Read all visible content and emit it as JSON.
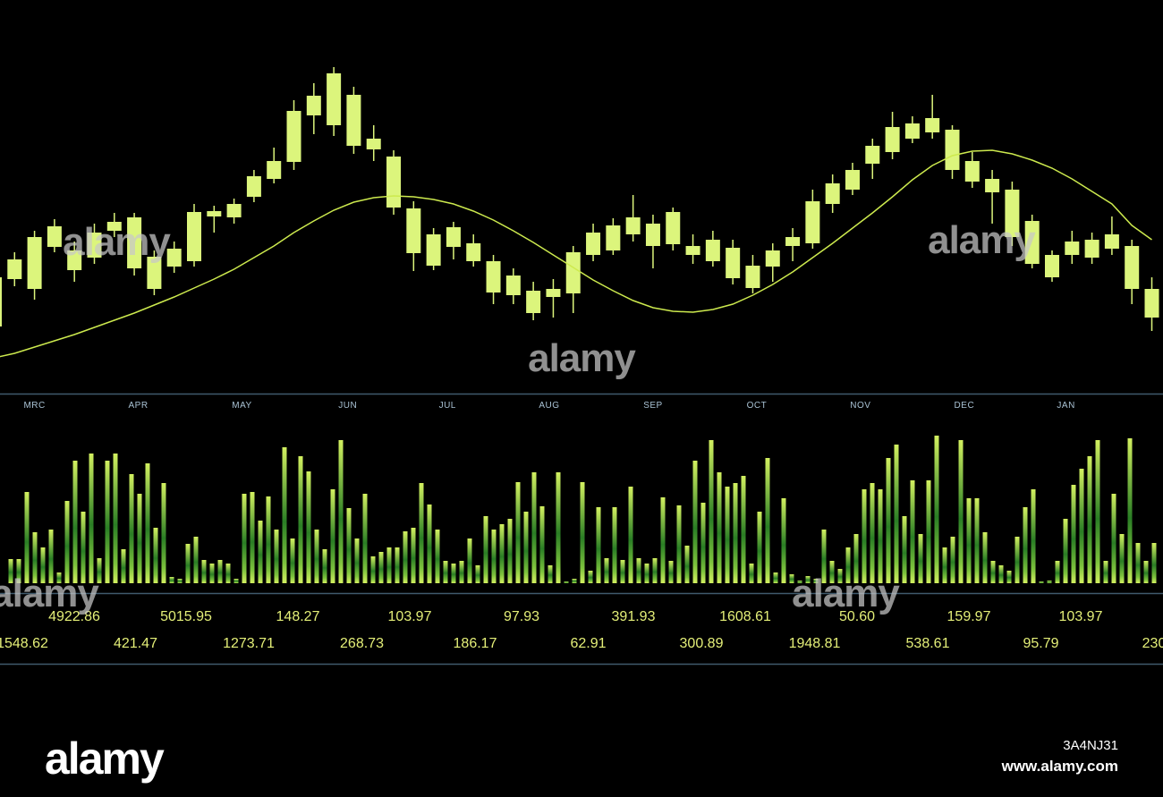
{
  "chart_data": [
    {
      "type": "candlestick",
      "color": "#dcf57c",
      "open": [
        75,
        128,
        117,
        164,
        138,
        152,
        182,
        140,
        117,
        142,
        148,
        198,
        197,
        220,
        240,
        259,
        311,
        300,
        277,
        273,
        208,
        157,
        143,
        164,
        148,
        113,
        110,
        90,
        108,
        112,
        155,
        160,
        178,
        165,
        167,
        155,
        148,
        129,
        118,
        142,
        165,
        168,
        212,
        228,
        257,
        270,
        285,
        292,
        250,
        237,
        225,
        175,
        145,
        130,
        155,
        152,
        162,
        117,
        85
      ],
      "high": [
        140,
        158,
        182,
        195,
        170,
        190,
        202,
        202,
        160,
        170,
        212,
        210,
        218,
        250,
        275,
        328,
        347,
        365,
        343,
        300,
        272,
        215,
        185,
        192,
        178,
        155,
        140,
        125,
        128,
        165,
        190,
        196,
        222,
        200,
        208,
        178,
        182,
        172,
        155,
        168,
        185,
        228,
        245,
        258,
        285,
        315,
        310,
        334,
        300,
        270,
        250,
        237,
        200,
        160,
        182,
        180,
        198,
        172,
        130
      ],
      "low": [
        70,
        120,
        105,
        158,
        125,
        145,
        175,
        132,
        110,
        135,
        142,
        180,
        190,
        214,
        235,
        250,
        290,
        288,
        268,
        260,
        200,
        137,
        138,
        150,
        142,
        100,
        100,
        82,
        85,
        90,
        148,
        155,
        170,
        140,
        160,
        145,
        142,
        122,
        112,
        125,
        148,
        162,
        202,
        222,
        240,
        262,
        280,
        285,
        240,
        230,
        190,
        165,
        140,
        125,
        145,
        145,
        155,
        100,
        70
      ],
      "close": [
        130,
        150,
        175,
        187,
        160,
        180,
        192,
        197,
        153,
        162,
        203,
        204,
        212,
        243,
        260,
        316,
        333,
        358,
        334,
        285,
        265,
        207,
        178,
        186,
        168,
        148,
        132,
        115,
        117,
        158,
        180,
        188,
        197,
        190,
        203,
        165,
        172,
        163,
        143,
        160,
        175,
        215,
        235,
        250,
        277,
        298,
        302,
        308,
        295,
        260,
        240,
        228,
        193,
        155,
        170,
        172,
        178,
        165,
        117
      ],
      "ma": {
        "color": "#cdea4e",
        "values": [
          40,
          45,
          52,
          59,
          66,
          74,
          82,
          90,
          99,
          108,
          118,
          128,
          139,
          152,
          165,
          180,
          193,
          205,
          214,
          219,
          221,
          220,
          217,
          212,
          204,
          194,
          182,
          169,
          155,
          141,
          127,
          115,
          104,
          96,
          92,
          91,
          94,
          100,
          110,
          122,
          136,
          152,
          168,
          185,
          202,
          220,
          239,
          255,
          266,
          271,
          272,
          268,
          261,
          252,
          240,
          226,
          212,
          188,
          172
        ]
      },
      "xlim": [
        0.27,
        58.56
      ],
      "ylim": [
        0,
        440
      ],
      "xticks": [
        {
          "value": 2,
          "label": "MRC"
        },
        {
          "value": 7.2,
          "label": "APR"
        },
        {
          "value": 12.4,
          "label": "MAY"
        },
        {
          "value": 17.7,
          "label": "JUN"
        },
        {
          "value": 22.7,
          "label": "JUL"
        },
        {
          "value": 27.8,
          "label": "AUG"
        },
        {
          "value": 33,
          "label": "SEP"
        },
        {
          "value": 38.2,
          "label": "OCT"
        },
        {
          "value": 43.4,
          "label": "NOV"
        },
        {
          "value": 48.6,
          "label": "DEC"
        },
        {
          "value": 53.7,
          "label": "JAN"
        }
      ]
    },
    {
      "type": "bar",
      "color": "#d2f060",
      "values": [
        27,
        27,
        102,
        57,
        40,
        60,
        12,
        92,
        137,
        80,
        145,
        28,
        137,
        145,
        38,
        122,
        100,
        134,
        62,
        112,
        7,
        5,
        44,
        52,
        26,
        22,
        26,
        22,
        5,
        100,
        102,
        70,
        97,
        60,
        152,
        50,
        142,
        125,
        60,
        38,
        105,
        160,
        84,
        50,
        100,
        30,
        35,
        40,
        40,
        58,
        62,
        112,
        88,
        60,
        25,
        22,
        25,
        50,
        20,
        75,
        60,
        66,
        72,
        113,
        80,
        124,
        86,
        20,
        124,
        2,
        5,
        113,
        14,
        85,
        28,
        85,
        26,
        108,
        28,
        22,
        28,
        96,
        25,
        87,
        42,
        137,
        90,
        160,
        124,
        108,
        112,
        120,
        22,
        80,
        140,
        12,
        95,
        10,
        3,
        8,
        5,
        60,
        25,
        16,
        40,
        55,
        105,
        112,
        105,
        140,
        155,
        75,
        115,
        55,
        115,
        165,
        40,
        52,
        160,
        95,
        95,
        57,
        25,
        20,
        14,
        52,
        85,
        105,
        2,
        3,
        25,
        72,
        110,
        128,
        142,
        160,
        25,
        100,
        55,
        162,
        45,
        25,
        45
      ],
      "xlim": [
        -1.333,
        143.11
      ],
      "ylim": [
        0,
        180
      ]
    }
  ],
  "ticker_rows": [
    [
      "4922.86",
      "5015.95",
      "148.27",
      "103.97",
      "97.93",
      "391.93",
      "1608.61",
      "50.60",
      "159.97",
      "103.97"
    ],
    [
      "1548.62",
      "421.47",
      "1273.71",
      "268.73",
      "186.17",
      "62.91",
      "300.89",
      "1948.81",
      "538.61",
      "95.79",
      "230"
    ]
  ],
  "watermark": "alamy",
  "image_id": "3A4NJ31",
  "site": "www.alamy.com"
}
